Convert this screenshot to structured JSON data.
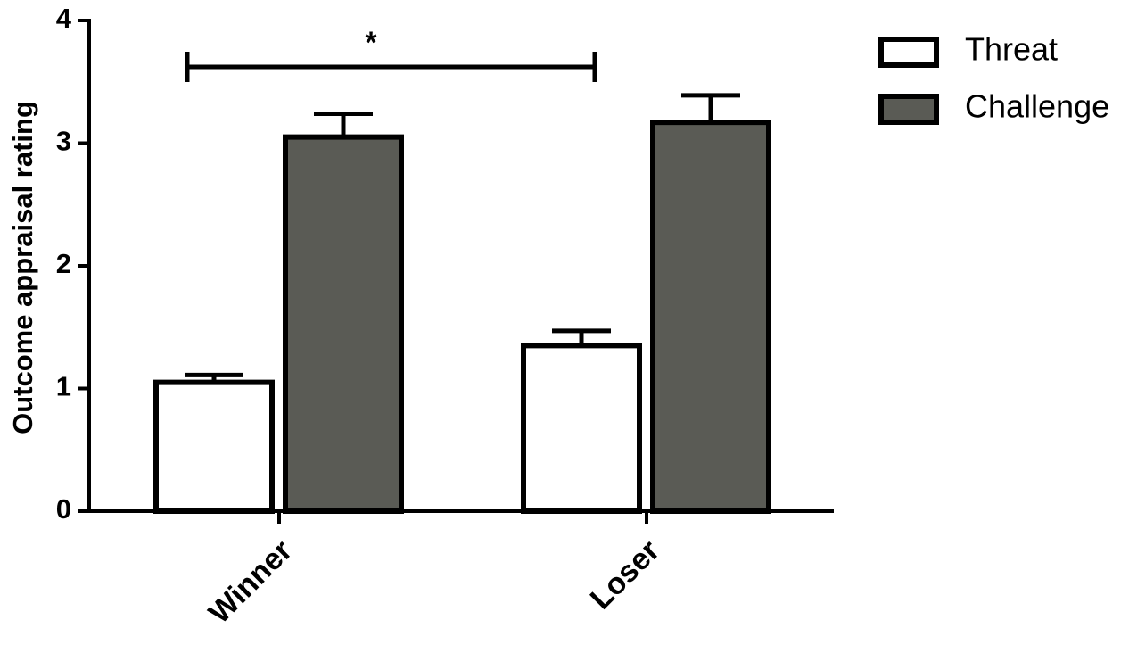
{
  "chart_data": {
    "type": "bar",
    "categories": [
      "Winner",
      "Loser"
    ],
    "series": [
      {
        "name": "Threat",
        "color": "#ffffff",
        "values": [
          1.05,
          1.35
        ],
        "errors": [
          0.06,
          0.12
        ]
      },
      {
        "name": "Challenge",
        "color": "#5a5b55",
        "values": [
          3.05,
          3.17
        ],
        "errors": [
          0.19,
          0.22
        ]
      }
    ],
    "y_label": "Outcome appraisal rating",
    "ylim": [
      0,
      4
    ],
    "yticks": [
      0,
      1,
      2,
      3,
      4
    ],
    "annotations": [
      {
        "text": "*"
      }
    ],
    "legend": "top-right"
  }
}
